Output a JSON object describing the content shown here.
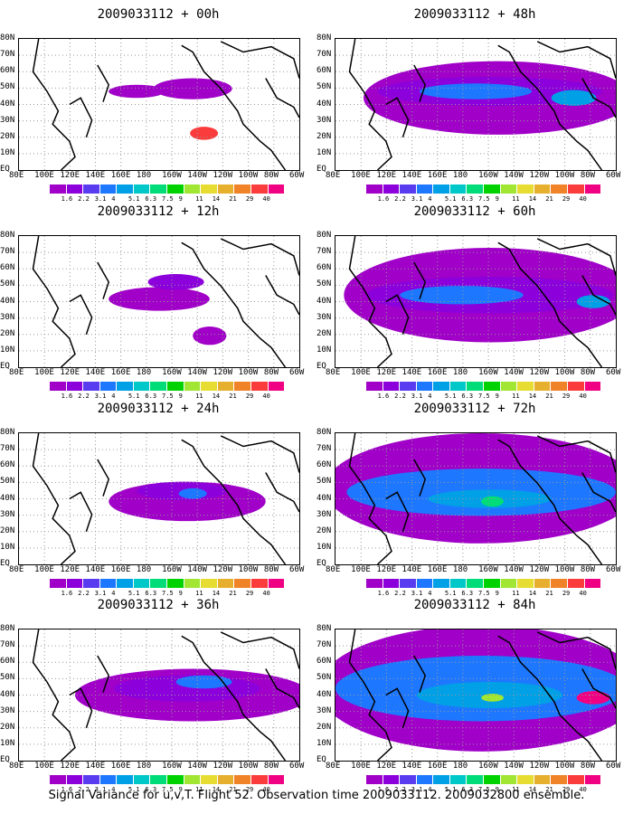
{
  "caption": "Signal Variance for u,v,T. Flight 52. Observation time 2009033112. 2009032800 ensemble.",
  "chart_data": {
    "type": "heatmap",
    "panels": [
      {
        "title": "2009033112 + 00h"
      },
      {
        "title": "2009033112 + 12h"
      },
      {
        "title": "2009033112 + 24h"
      },
      {
        "title": "2009033112 + 36h"
      },
      {
        "title": "2009033112 + 48h"
      },
      {
        "title": "2009033112 + 60h"
      },
      {
        "title": "2009033112 + 72h"
      },
      {
        "title": "2009033112 + 84h"
      }
    ],
    "y_ticks": [
      "80N",
      "70N",
      "60N",
      "50N",
      "40N",
      "30N",
      "20N",
      "10N",
      "EQ"
    ],
    "x_ticks": [
      "80E",
      "100E",
      "120E",
      "140E",
      "160E",
      "180",
      "160W",
      "140W",
      "120W",
      "100W",
      "80W",
      "60W"
    ],
    "colorbar": {
      "levels": [
        "1.6",
        "2.2",
        "3.1",
        "4",
        "5.1",
        "6.3",
        "7.5",
        "9",
        "11",
        "14",
        "21",
        "29",
        "40"
      ],
      "colors": [
        "#a000c8",
        "#8c00dc",
        "#5a3cf0",
        "#1e78ff",
        "#00a0e6",
        "#00c8c8",
        "#00dc78",
        "#00d200",
        "#a0e632",
        "#e6dc32",
        "#e6af2d",
        "#f08228",
        "#fa3c3c",
        "#f00082"
      ]
    }
  }
}
